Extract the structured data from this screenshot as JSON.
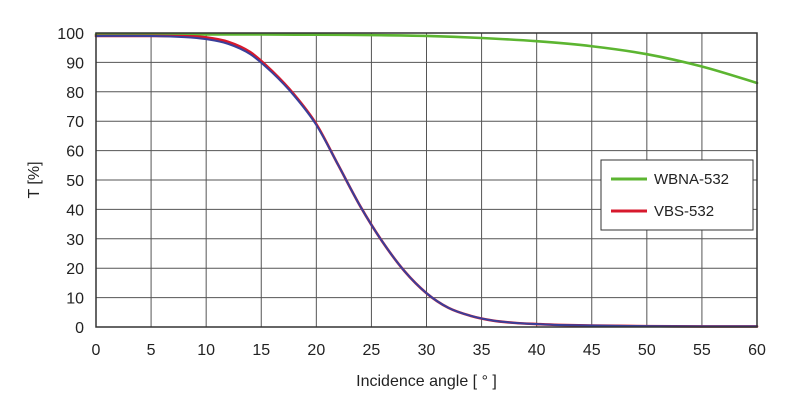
{
  "chart_data": {
    "type": "line",
    "title": "",
    "xlabel": "Incidence angle  [ ° ]",
    "ylabel": "T [%]",
    "xlim": [
      0,
      60
    ],
    "ylim": [
      0,
      100
    ],
    "xticks": [
      0,
      5,
      10,
      15,
      20,
      25,
      30,
      35,
      40,
      45,
      50,
      55,
      60
    ],
    "yticks": [
      0,
      10,
      20,
      30,
      40,
      50,
      60,
      70,
      80,
      90,
      100
    ],
    "grid": true,
    "legend_position": "center-right",
    "series": [
      {
        "name": "WBNA-532",
        "color": "#5cb531",
        "points": [
          [
            0,
            99.5
          ],
          [
            5,
            99.5
          ],
          [
            10,
            99.5
          ],
          [
            15,
            99.5
          ],
          [
            20,
            99.4
          ],
          [
            25,
            99.3
          ],
          [
            30,
            99
          ],
          [
            35,
            98.3
          ],
          [
            40,
            97.2
          ],
          [
            45,
            95.5
          ],
          [
            50,
            92.8
          ],
          [
            55,
            88.6
          ],
          [
            60,
            83
          ]
        ]
      },
      {
        "name": "VBS-532",
        "color": "#d7192d",
        "points": [
          [
            0,
            99
          ],
          [
            5,
            99
          ],
          [
            8,
            98.9
          ],
          [
            10,
            98.5
          ],
          [
            12,
            97
          ],
          [
            14,
            93.5
          ],
          [
            16,
            87
          ],
          [
            18,
            79
          ],
          [
            20,
            69
          ],
          [
            22,
            55
          ],
          [
            24,
            41
          ],
          [
            26,
            29
          ],
          [
            28,
            19
          ],
          [
            30,
            11.5
          ],
          [
            32,
            6.5
          ],
          [
            34,
            3.8
          ],
          [
            36,
            2.2
          ],
          [
            38,
            1.4
          ],
          [
            40,
            1
          ],
          [
            42,
            0.7
          ],
          [
            45,
            0.5
          ],
          [
            50,
            0.3
          ],
          [
            55,
            0.2
          ],
          [
            60,
            0.2
          ]
        ]
      },
      {
        "name": "",
        "color": "#3a3f9a",
        "points": [
          [
            0,
            99
          ],
          [
            5,
            99
          ],
          [
            8,
            98.6
          ],
          [
            10,
            97.9
          ],
          [
            12,
            96.3
          ],
          [
            14,
            92.8
          ],
          [
            16,
            86.5
          ],
          [
            18,
            78.6
          ],
          [
            20,
            68.7
          ],
          [
            22,
            55
          ],
          [
            24,
            41
          ],
          [
            26,
            29
          ],
          [
            28,
            19
          ],
          [
            30,
            11.5
          ],
          [
            32,
            6.5
          ],
          [
            34,
            3.8
          ],
          [
            36,
            2.2
          ],
          [
            38,
            1.4
          ],
          [
            40,
            1
          ],
          [
            42,
            0.7
          ],
          [
            45,
            0.5
          ],
          [
            50,
            0.3
          ],
          [
            55,
            0.2
          ],
          [
            60,
            0.2
          ]
        ]
      }
    ]
  }
}
